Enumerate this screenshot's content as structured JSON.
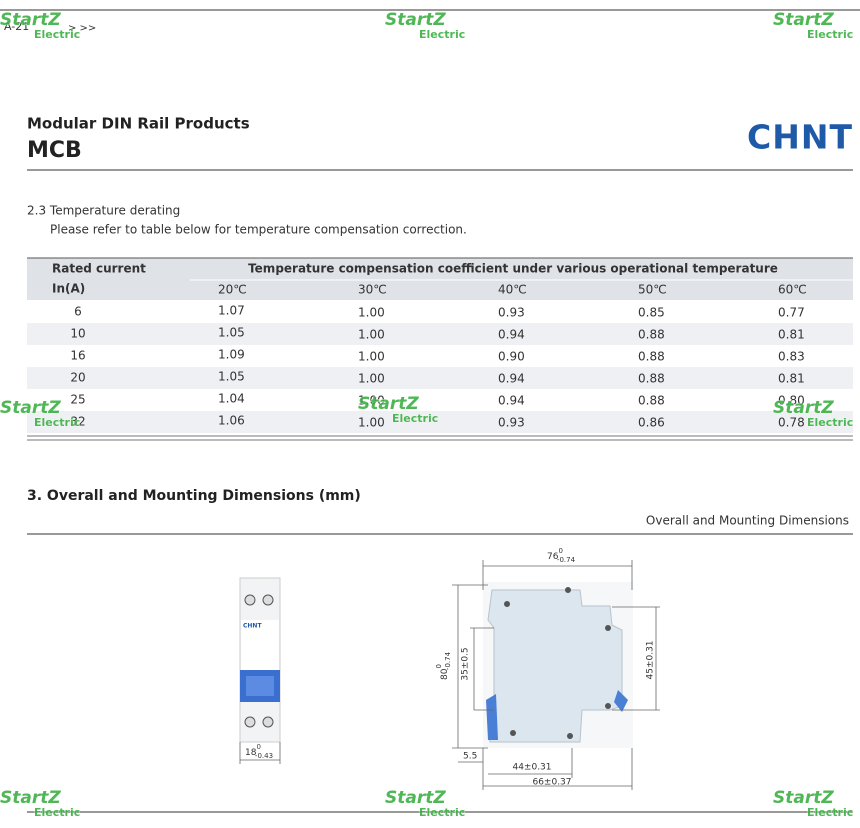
{
  "page": {
    "code": "A-21",
    "nav": "> >>"
  },
  "watermark": {
    "brand": "StartZ",
    "sub": "Electric"
  },
  "header": {
    "category": "Modular DIN Rail Products",
    "title": "MCB",
    "logo": "CHNT"
  },
  "section_2_3": {
    "heading": "2.3 Temperature derating",
    "note": "Please refer to table below for temperature compensation correction."
  },
  "table": {
    "col0_header": [
      "Rated current",
      "In(A)"
    ],
    "group_header": "Temperature compensation coefficient under various operational temperature",
    "temperatures": [
      "20℃",
      "30℃",
      "40℃",
      "50℃",
      "60℃"
    ],
    "rows": [
      [
        "6",
        "1.07",
        "1.00",
        "0.93",
        "0.85",
        "0.77"
      ],
      [
        "10",
        "1.05",
        "1.00",
        "0.94",
        "0.88",
        "0.81"
      ],
      [
        "16",
        "1.09",
        "1.00",
        "0.90",
        "0.88",
        "0.83"
      ],
      [
        "20",
        "1.05",
        "1.00",
        "0.94",
        "0.88",
        "0.81"
      ],
      [
        "25",
        "1.04",
        "1.00",
        "0.94",
        "0.88",
        "0.80"
      ],
      [
        "32",
        "1.06",
        "1.00",
        "0.93",
        "0.86",
        "0.78"
      ]
    ]
  },
  "section_3": {
    "heading": "3. Overall and Mounting Dimensions (mm)",
    "caption": "Overall and Mounting Dimensions",
    "device_logo": "CHNT",
    "dimensions": {
      "front_width": {
        "nominal": "18",
        "upper": "0",
        "lower": "-0.43"
      },
      "depth": {
        "nominal": "76",
        "upper": "0",
        "lower": "-0.74"
      },
      "height": {
        "nominal": "80",
        "upper": "0",
        "lower": "-0.74"
      },
      "rail_offset": "35±0.5",
      "rail_height": "45±0.31",
      "step": "5.5",
      "mount_width": "44±0.31",
      "overall_width": "66±0.37"
    }
  }
}
